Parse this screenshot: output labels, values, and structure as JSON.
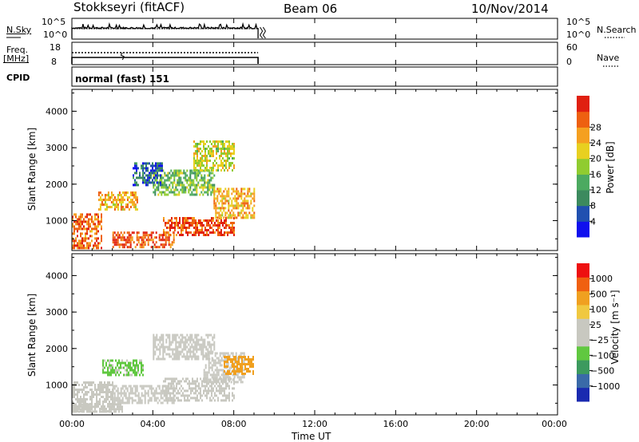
{
  "header": {
    "station": "Stokkseyri (fitACF)",
    "beam": "Beam 06",
    "date": "10/Nov/2014"
  },
  "strip": {
    "nsky_label": "N.Sky",
    "nsky_ticks": [
      "10^5",
      "10^0"
    ],
    "nsearch_label": "N.Search",
    "nsearch_ticks": [
      "10^5",
      "10^0"
    ],
    "freq_label_1": "Freq.",
    "freq_label_2": "[MHz]",
    "freq_ticks": [
      "18",
      "8"
    ],
    "nave_label": "Nave",
    "nave_ticks": [
      "60",
      "0"
    ],
    "cpid_label": "CPID",
    "cpid_value": "normal (fast) 151"
  },
  "x_axis": {
    "label": "Time UT",
    "ticks": [
      "00:00",
      "04:00",
      "08:00",
      "12:00",
      "16:00",
      "20:00",
      "00:00"
    ]
  },
  "colors": {
    "power_scale": [
      "#1010ee",
      "#2050b0",
      "#3c8a5e",
      "#4caa60",
      "#90cc30",
      "#e8d020",
      "#f5a020",
      "#ee6010",
      "#e02010"
    ],
    "velocity_scale": [
      "#ee1010",
      "#f06010",
      "#f0a020",
      "#f0c840",
      "#c8c8c0",
      "#c8c8c0",
      "#60c840",
      "#3c9a5e",
      "#3a6aa8",
      "#1a2ab0"
    ]
  },
  "chart_data": [
    {
      "type": "heatmap",
      "panel": "power",
      "ylabel": "Slant Range [km]",
      "y_ticks": [
        "1000",
        "2000",
        "3000",
        "4000"
      ],
      "ylim": [
        180,
        4600
      ],
      "xlim_hours": [
        0,
        24
      ],
      "colorbar_label": "Power [dB]",
      "colorbar_ticks": [
        "4",
        "8",
        "12",
        "16",
        "20",
        "24",
        "28"
      ],
      "colorbar_range": [
        0,
        32
      ],
      "data_time_range_hours": [
        0,
        9.2
      ],
      "echo_regions": [
        {
          "t": [
            0.0,
            1.5
          ],
          "range_km": [
            250,
            1200
          ],
          "value": 26
        },
        {
          "t": [
            1.3,
            3.2
          ],
          "range_km": [
            1300,
            1800
          ],
          "value": 22
        },
        {
          "t": [
            2.0,
            5.0
          ],
          "range_km": [
            300,
            700
          ],
          "value": 27
        },
        {
          "t": [
            4.5,
            8.0
          ],
          "range_km": [
            600,
            1100
          ],
          "value": 28
        },
        {
          "t": [
            4.0,
            7.0
          ],
          "range_km": [
            1700,
            2400
          ],
          "value": 14
        },
        {
          "t": [
            6.0,
            8.0
          ],
          "range_km": [
            2400,
            3200
          ],
          "value": 18
        },
        {
          "t": [
            7.0,
            9.0
          ],
          "range_km": [
            1100,
            1900
          ],
          "value": 22
        },
        {
          "t": [
            3.0,
            4.5
          ],
          "range_km": [
            2000,
            2600
          ],
          "value": 6
        }
      ]
    },
    {
      "type": "heatmap",
      "panel": "velocity",
      "ylabel": "Slant Range [km]",
      "y_ticks": [
        "1000",
        "2000",
        "3000",
        "4000"
      ],
      "ylim": [
        180,
        4600
      ],
      "xlim_hours": [
        0,
        24
      ],
      "colorbar_label": "Velocity [m s⁻¹]",
      "colorbar_ticks": [
        "1000",
        "500",
        "100",
        "25",
        "−25",
        "−100",
        "−500",
        "−1000"
      ],
      "colorbar_range": [
        -1250,
        1250
      ],
      "data_time_range_hours": [
        0,
        9.2
      ],
      "echo_regions": [
        {
          "t": [
            0.0,
            2.0
          ],
          "range_km": [
            250,
            1100
          ],
          "value": 0
        },
        {
          "t": [
            0.0,
            2.5
          ],
          "range_km": [
            250,
            500
          ],
          "value": 150
        },
        {
          "t": [
            2.0,
            5.0
          ],
          "range_km": [
            500,
            1000
          ],
          "value": 0
        },
        {
          "t": [
            4.5,
            8.0
          ],
          "range_km": [
            600,
            1200
          ],
          "value": -80
        },
        {
          "t": [
            4.0,
            7.0
          ],
          "range_km": [
            1700,
            2400
          ],
          "value": 0
        },
        {
          "t": [
            6.5,
            8.5
          ],
          "range_km": [
            1100,
            1900
          ],
          "value": -120
        },
        {
          "t": [
            7.5,
            9.0
          ],
          "range_km": [
            1300,
            1800
          ],
          "value": 600
        },
        {
          "t": [
            1.5,
            3.5
          ],
          "range_km": [
            1300,
            1700
          ],
          "value": -300
        }
      ]
    }
  ]
}
